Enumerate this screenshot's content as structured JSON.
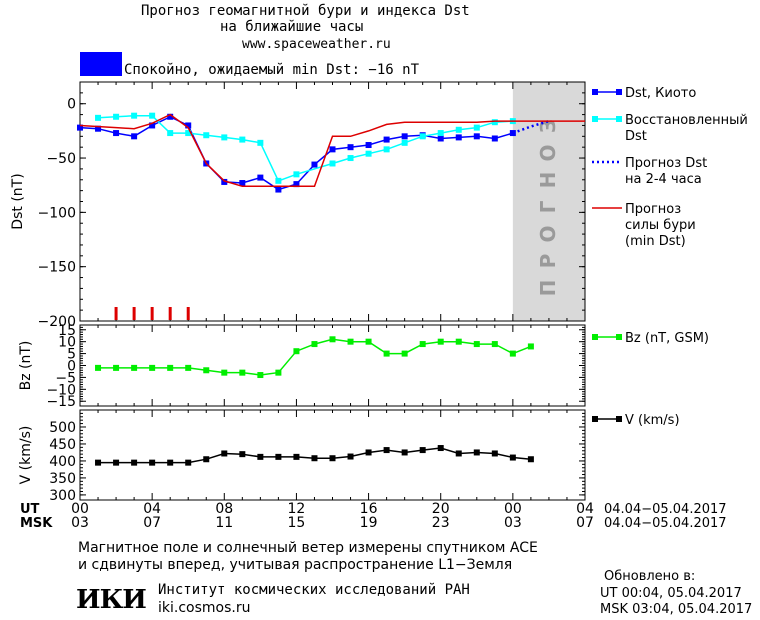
{
  "header": {
    "title_line1": "Прогноз геомагнитной бури и индекса Dst",
    "title_line2": "на ближайшие часы",
    "site": "www.spaceweather.ru",
    "status_text": "Спокойно, ожидаемый min Dst: −16 nT",
    "status_color": "#0000ff"
  },
  "chart_data": [
    {
      "type": "line",
      "ylabel": "Dst (nT)",
      "ylim": [
        -200,
        20
      ],
      "yticks": [
        0,
        -50,
        -100,
        -150,
        -200
      ],
      "xlim": [
        0,
        28
      ],
      "forecast_region": {
        "x": [
          24,
          28
        ],
        "label": "ПРОГНОЗ",
        "color": "#d9d9d9"
      },
      "series": [
        {
          "name": "Dst, Киото",
          "color": "#0000ff",
          "marker": "square",
          "x": [
            0,
            1,
            2,
            3,
            4,
            5,
            6,
            7,
            8,
            9,
            10,
            11,
            12,
            13,
            14,
            15,
            16,
            17,
            18,
            19,
            20,
            21,
            22,
            23,
            24
          ],
          "values": [
            -22,
            -23,
            -27,
            -30,
            -20,
            -12,
            -20,
            -55,
            -72,
            -73,
            -68,
            -79,
            -74,
            -56,
            -42,
            -40,
            -38,
            -33,
            -30,
            -29,
            -32,
            -31,
            -30,
            -32,
            -27
          ]
        },
        {
          "name": "Восстановленный Dst",
          "color": "#00ffff",
          "marker": "square",
          "x": [
            1,
            2,
            3,
            4,
            5,
            6,
            7,
            8,
            9,
            10,
            11,
            12,
            14,
            15,
            16,
            17,
            18,
            19,
            20,
            21,
            22,
            23,
            24
          ],
          "values": [
            -13,
            -12,
            -11,
            -11,
            -27,
            -27,
            -29,
            -31,
            -33,
            -36,
            -71,
            -65,
            -55,
            -50,
            -46,
            -42,
            -36,
            -30,
            -27,
            -24,
            -22,
            -17,
            -16
          ]
        },
        {
          "name": "Прогноз Dst на 2-4 часа",
          "color": "#0000ff",
          "dotted": true,
          "x": [
            24,
            25,
            26
          ],
          "values": [
            -27,
            -21,
            -16
          ]
        },
        {
          "name": "Прогноз силы бури (min Dst)",
          "color": "#dd0000",
          "x": [
            0,
            2,
            3,
            4,
            5,
            6,
            7,
            8,
            9,
            10,
            11,
            12,
            13,
            14,
            15,
            16,
            17,
            18,
            19,
            20,
            21,
            22,
            23,
            24,
            28
          ],
          "values": [
            -20,
            -22,
            -23,
            -18,
            -10,
            -22,
            -55,
            -71,
            -76,
            -76,
            -76,
            -76,
            -76,
            -30,
            -30,
            -25,
            -19,
            -17,
            -17,
            -17,
            -17,
            -17,
            -16,
            -16,
            -16
          ]
        }
      ],
      "storm_ticks_x": [
        2,
        3,
        4,
        5,
        6
      ],
      "legend": [
        {
          "label": "Dst, Киото"
        },
        {
          "label": "Восстановленный Dst"
        },
        {
          "label": "Прогноз Dst на 2-4 часа"
        },
        {
          "label": "Прогноз силы бури (min Dst)"
        }
      ]
    },
    {
      "type": "line",
      "ylabel": "Bz (nT)",
      "ylim": [
        -17,
        17
      ],
      "yticks": [
        15,
        10,
        5,
        0,
        -5,
        -10,
        -15
      ],
      "series": [
        {
          "name": "Bz (nT, GSM)",
          "color": "#00ee00",
          "marker": "square",
          "x": [
            1,
            2,
            3,
            4,
            5,
            6,
            7,
            8,
            9,
            10,
            11,
            12,
            13,
            14,
            15,
            16,
            17,
            18,
            19,
            20,
            21,
            22,
            23,
            24,
            25
          ],
          "values": [
            -1,
            -1,
            -1,
            -1,
            -1,
            -1,
            -2,
            -3,
            -3,
            -4,
            -3,
            6,
            9,
            11,
            10,
            10,
            5,
            5,
            9,
            10,
            10,
            9,
            9,
            5,
            8
          ]
        }
      ],
      "legend": [
        {
          "label": "Bz (nT, GSM)"
        }
      ]
    },
    {
      "type": "line",
      "ylabel": "V (km/s)",
      "ylim": [
        285,
        550
      ],
      "yticks": [
        500,
        450,
        400,
        350,
        300
      ],
      "series": [
        {
          "name": "V (km/s)",
          "color": "#000000",
          "marker": "square",
          "x": [
            1,
            2,
            3,
            4,
            5,
            6,
            7,
            8,
            9,
            10,
            11,
            12,
            13,
            14,
            15,
            16,
            17,
            18,
            19,
            20,
            21,
            22,
            23,
            24,
            25
          ],
          "values": [
            395,
            395,
            395,
            395,
            395,
            395,
            405,
            422,
            420,
            412,
            412,
            412,
            408,
            408,
            413,
            425,
            432,
            425,
            432,
            438,
            422,
            425,
            422,
            410,
            405
          ]
        }
      ],
      "legend": [
        {
          "label": "V (km/s)"
        }
      ]
    }
  ],
  "axis": {
    "ut_label": "UT",
    "msk_label": "MSK",
    "ut_ticks": [
      "00",
      "04",
      "08",
      "12",
      "16",
      "20",
      "00",
      "04"
    ],
    "msk_ticks": [
      "03",
      "07",
      "11",
      "15",
      "19",
      "23",
      "03",
      "07"
    ],
    "date_range_ut": "04.04−05.04.2017",
    "date_range_msk": "04.04−05.04.2017"
  },
  "footer": {
    "note_line1": "Магнитное поле и солнечный ветер измерены спутником ACE",
    "note_line2": "и сдвинуты вперед, учитывая распространение L1−Земля",
    "institute": "Институт космических исследований РАН",
    "institute_url": "iki.cosmos.ru",
    "logo_text": "ИКИ",
    "updated_label": "Обновлено в:",
    "updated_ut": "UT  00:04, 05.04.2017",
    "updated_msk": "MSK 03:04, 05.04.2017"
  }
}
